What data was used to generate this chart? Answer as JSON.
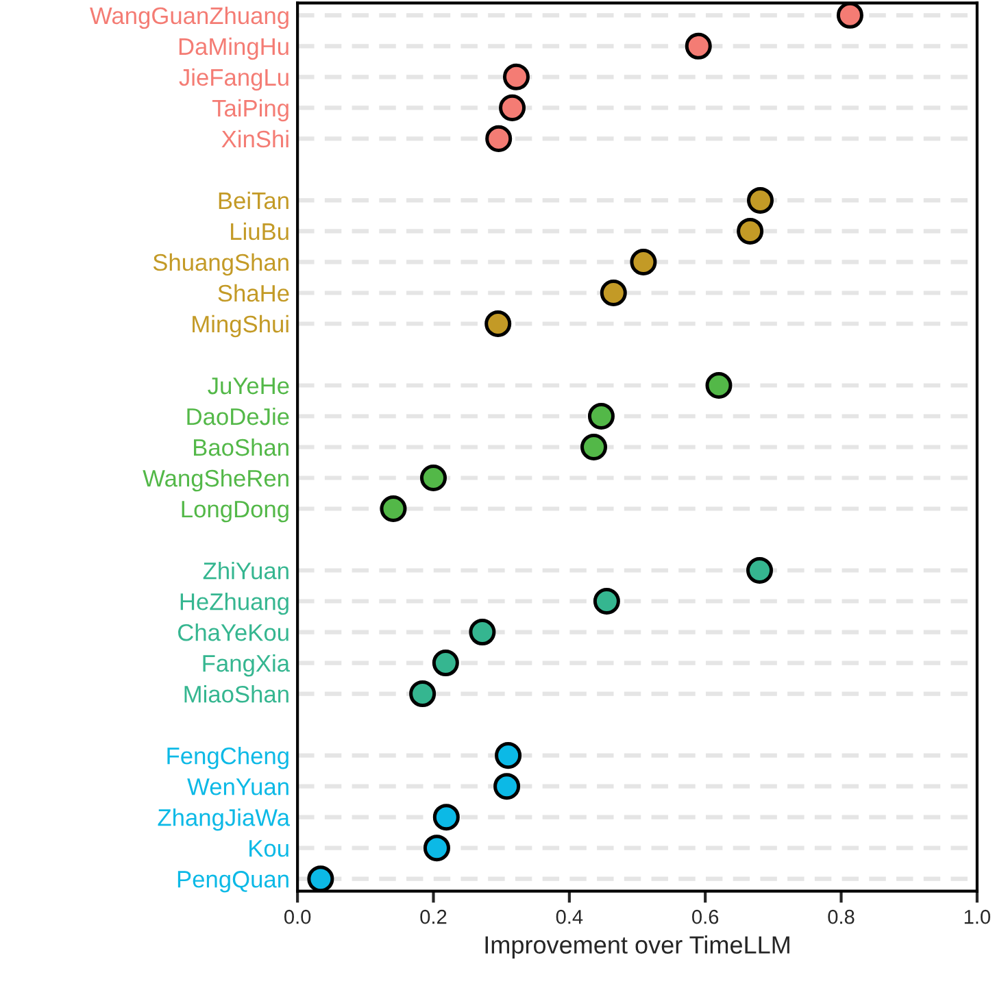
{
  "chart_data": {
    "type": "scatter",
    "orientation": "horizontal",
    "xlabel": "Improvement over TimeLLM",
    "categories": [
      "WangGuanZhuang",
      "DaMingHu",
      "JieFangLu",
      "TaiPing",
      "XinShi",
      "BeiTan",
      "LiuBu",
      "ShuangShan",
      "ShaHe",
      "MingShui",
      "JuYeHe",
      "DaoDeJie",
      "BaoShan",
      "WangSheRen",
      "LongDong",
      "ZhiYuan",
      "HeZhuang",
      "ChaYeKou",
      "FangXia",
      "MiaoShan",
      "FengCheng",
      "WenYuan",
      "ZhangJiaWa",
      "Kou",
      "PengQuan"
    ],
    "series": [
      {
        "color": "#f47c74",
        "values": [
          0.813,
          0.59,
          0.322,
          0.316,
          0.296,
          null,
          null,
          null,
          null,
          null,
          null,
          null,
          null,
          null,
          null,
          null,
          null,
          null,
          null,
          null,
          null,
          null,
          null,
          null,
          null
        ]
      },
      {
        "color": "#c39a26",
        "values": [
          null,
          null,
          null,
          null,
          null,
          0.681,
          0.666,
          0.509,
          0.465,
          0.295,
          null,
          null,
          null,
          null,
          null,
          null,
          null,
          null,
          null,
          null,
          null,
          null,
          null,
          null,
          null
        ]
      },
      {
        "color": "#53b848",
        "values": [
          null,
          null,
          null,
          null,
          null,
          null,
          null,
          null,
          null,
          null,
          0.62,
          0.447,
          0.436,
          0.2,
          0.141,
          null,
          null,
          null,
          null,
          null,
          null,
          null,
          null,
          null,
          null
        ]
      },
      {
        "color": "#35b690",
        "values": [
          null,
          null,
          null,
          null,
          null,
          null,
          null,
          null,
          null,
          null,
          null,
          null,
          null,
          null,
          null,
          0.68,
          0.455,
          0.272,
          0.218,
          0.184,
          null,
          null,
          null,
          null,
          null
        ]
      },
      {
        "color": "#0cb9e6",
        "values": [
          null,
          null,
          null,
          null,
          null,
          null,
          null,
          null,
          null,
          null,
          null,
          null,
          null,
          null,
          null,
          null,
          null,
          null,
          null,
          null,
          0.31,
          0.308,
          0.219,
          0.205,
          0.034
        ]
      }
    ],
    "xlim": [
      0,
      1
    ],
    "xticks": [
      {
        "value": 0,
        "label": "0.0"
      },
      0.2,
      0.4,
      0.6,
      0.8,
      {
        "value": 1,
        "label": "1.0"
      }
    ],
    "grid": "y",
    "marker": "circle"
  }
}
